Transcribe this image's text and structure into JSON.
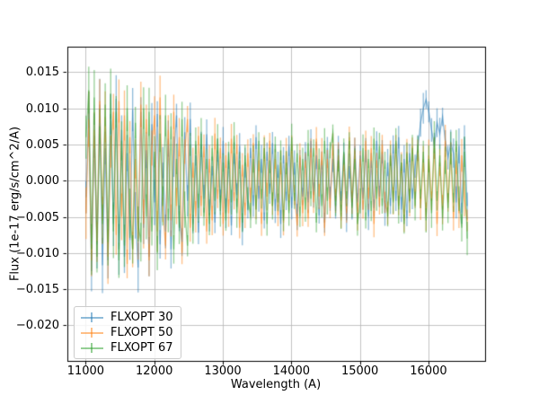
{
  "chart_data": {
    "type": "line",
    "plot_style": "errorbar-spectrum",
    "title": "",
    "xlabel": "Wavelength (A)",
    "ylabel": "Flux (1e-17 erg/s/cm^2/A)",
    "grid": true,
    "legend_position": "lower left",
    "xlim": [
      10733,
      16826
    ],
    "ylim": [
      -0.0249,
      0.0185
    ],
    "x_ticks": [
      11000,
      12000,
      13000,
      14000,
      15000,
      16000
    ],
    "x_tick_labels": [
      "11000",
      "12000",
      "13000",
      "14000",
      "15000",
      "16000"
    ],
    "y_ticks": [
      0.015,
      0.01,
      0.005,
      0.0,
      -0.005,
      -0.01,
      -0.015,
      -0.02
    ],
    "y_tick_labels": [
      "0.015",
      "0.010",
      "0.005",
      "0.000",
      "−0.005",
      "−0.010",
      "−0.015",
      "−0.020"
    ],
    "grid_color": "#bbbbbb",
    "frame_color": "#000000",
    "x_start": 11005,
    "x_step": 40,
    "n_points": 140,
    "flux_unit": 0.0001,
    "yerr_envelope": [
      [
        11000,
        32
      ],
      [
        12000,
        26
      ],
      [
        12600,
        18
      ],
      [
        14000,
        15
      ],
      [
        15500,
        15
      ],
      [
        16600,
        20
      ]
    ],
    "series": [
      {
        "name": "FLXOPT 30",
        "color": "#1f77b4",
        "alpha": 0.5,
        "y": [
          -23,
          98,
          -125,
          62,
          -88,
          105,
          -117,
          45,
          -110,
          92,
          -60,
          113,
          -95,
          70,
          -105,
          38,
          -82,
          98,
          -48,
          -120,
          95,
          -65,
          42,
          -105,
          78,
          -30,
          92,
          -88,
          25,
          -70,
          58,
          -95,
          33,
          90,
          -52,
          -85,
          67,
          -28,
          85,
          -60,
          35,
          -72,
          50,
          -25,
          64,
          -48,
          20,
          -58,
          42,
          -30,
          55,
          -45,
          28,
          -62,
          38,
          -20,
          48,
          -70,
          25,
          -40,
          45,
          -35,
          60,
          -25,
          30,
          -55,
          40,
          -18,
          52,
          -42,
          22,
          -60,
          35,
          -28,
          48,
          -38,
          25,
          -50,
          32,
          -22,
          40,
          -30,
          55,
          -20,
          35,
          -48,
          28,
          -58,
          45,
          -25,
          30,
          -42,
          50,
          -28,
          38,
          -55,
          20,
          -35,
          48,
          -30,
          35,
          -25,
          42,
          -50,
          28,
          -38,
          55,
          -22,
          40,
          -45,
          25,
          -35,
          50,
          -28,
          60,
          -40,
          30,
          -52,
          38,
          -25,
          20,
          45,
          80,
          100,
          112,
          95,
          70,
          48,
          80,
          65,
          88,
          55,
          32,
          52,
          38,
          -30,
          48,
          -45,
          60,
          -35
        ]
      },
      {
        "name": "FLXOPT 50",
        "color": "#ff7f0e",
        "alpha": 0.5,
        "y": [
          -45,
          85,
          -110,
          70,
          -85,
          110,
          -55,
          88,
          -105,
          40,
          95,
          -75,
          110,
          -50,
          90,
          -115,
          60,
          -95,
          30,
          -80,
          105,
          -60,
          85,
          -110,
          45,
          90,
          -70,
          115,
          -40,
          -90,
          70,
          -55,
          95,
          -35,
          60,
          -100,
          40,
          85,
          -65,
          25,
          -50,
          62,
          -35,
          48,
          -70,
          30,
          -55,
          65,
          -25,
          45,
          -60,
          35,
          -45,
          58,
          -28,
          50,
          -65,
          22,
          -48,
          38,
          -30,
          52,
          -40,
          28,
          -60,
          45,
          -22,
          55,
          -35,
          30,
          -48,
          25,
          -58,
          40,
          -30,
          50,
          -20,
          -62,
          35,
          -45,
          28,
          -52,
          45,
          -30,
          58,
          -22,
          40,
          -65,
          30,
          -38,
          50,
          -28,
          35,
          -55,
          25,
          -45,
          60,
          -30,
          42,
          -50,
          30,
          -40,
          55,
          -25,
          45,
          -60,
          28,
          -35,
          50,
          -30,
          -45,
          38,
          -28,
          52,
          -35,
          25,
          -55,
          40,
          -30,
          48,
          -25,
          42,
          -38,
          30,
          -50,
          35,
          -28,
          45,
          -60,
          25,
          -40,
          55,
          -30,
          38,
          -52,
          28,
          -45,
          35,
          -25,
          -55
        ]
      },
      {
        "name": "FLXOPT 67",
        "color": "#2ca02c",
        "alpha": 0.5,
        "y": [
          60,
          125,
          -95,
          115,
          -105,
          75,
          -60,
          105,
          -85,
          120,
          -70,
          95,
          -110,
          55,
          -90,
          100,
          -45,
          -95,
          80,
          -60,
          -85,
          100,
          -50,
          95,
          -70,
          40,
          -100,
          65,
          -35,
          90,
          -55,
          75,
          -95,
          30,
          -65,
          85,
          -40,
          -90,
          50,
          -70,
          55,
          -38,
          65,
          -50,
          30,
          -60,
          45,
          -28,
          58,
          -42,
          25,
          -55,
          38,
          -30,
          62,
          -45,
          28,
          -58,
          35,
          -25,
          -48,
          30,
          -40,
          55,
          -25,
          45,
          -60,
          28,
          -35,
          50,
          -30,
          42,
          -55,
          25,
          -45,
          60,
          -28,
          38,
          -50,
          30,
          -40,
          52,
          -25,
          45,
          -58,
          30,
          -35,
          55,
          -28,
          42,
          65,
          -35,
          28,
          -50,
          40,
          -25,
          55,
          -38,
          30,
          -60,
          -28,
          45,
          -55,
          30,
          -42,
          58,
          -25,
          48,
          -35,
          28,
          -50,
          35,
          -30,
          55,
          -40,
          25,
          -60,
          38,
          -28,
          45,
          -35,
          50,
          -25,
          40,
          -55,
          30,
          -45,
          60,
          -28,
          35,
          -52,
          28,
          -38,
          45,
          -30,
          55,
          -25,
          -65,
          40,
          -80
        ]
      }
    ]
  }
}
